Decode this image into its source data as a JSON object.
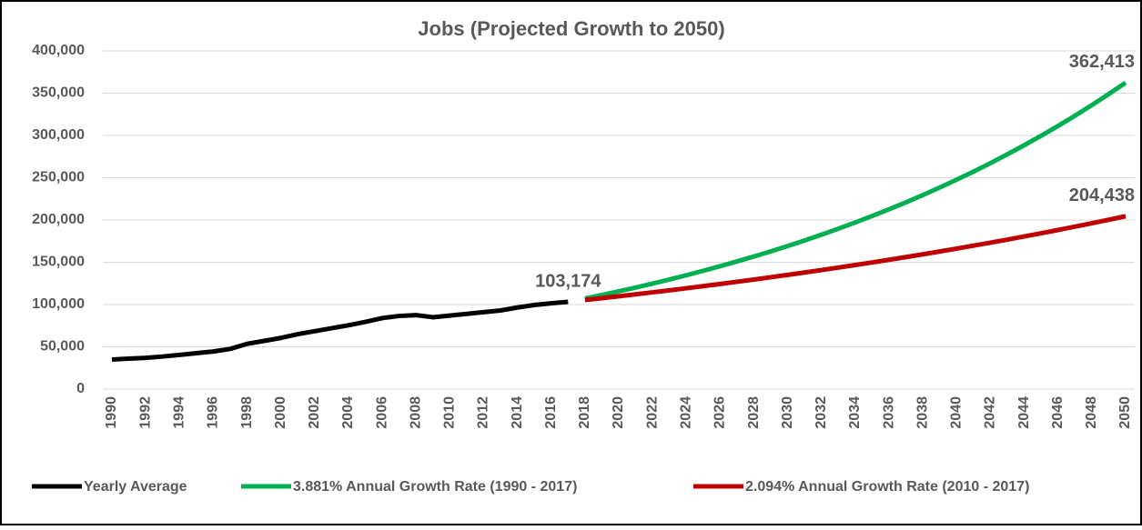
{
  "chart_data": {
    "type": "line",
    "title": "Jobs (Projected Growth to 2050)",
    "categories": [
      "1990",
      null,
      "1992",
      null,
      "1994",
      null,
      "1996",
      null,
      "1998",
      null,
      "2000",
      null,
      "2002",
      null,
      "2004",
      null,
      "2006",
      null,
      "2008",
      null,
      "2010",
      null,
      "2012",
      null,
      "2014",
      null,
      "2016",
      null,
      "2018",
      null,
      "2020",
      null,
      "2022",
      null,
      "2024",
      null,
      "2026",
      null,
      "2028",
      null,
      "2030",
      null,
      "2032",
      null,
      "2034",
      null,
      "2036",
      null,
      "2038",
      null,
      "2040",
      null,
      "2042",
      null,
      "2044",
      null,
      "2046",
      null,
      "2048",
      null,
      "2050"
    ],
    "series": [
      {
        "name": "Yearly Average",
        "color": "#000000",
        "values": [
          35000,
          36000,
          37000,
          38500,
          40500,
          42500,
          44500,
          47500,
          53500,
          57000,
          60500,
          65000,
          68500,
          72000,
          75500,
          79500,
          84000,
          86500,
          87500,
          85000,
          87000,
          89000,
          91000,
          93000,
          96500,
          99500,
          101500,
          103174,
          null,
          null,
          null,
          null,
          null,
          null,
          null,
          null,
          null,
          null,
          null,
          null,
          null,
          null,
          null,
          null,
          null,
          null,
          null,
          null,
          null,
          null,
          null,
          null,
          null,
          null,
          null,
          null,
          null,
          null,
          null,
          null,
          null
        ],
        "value_labels": [
          null,
          null,
          null,
          null,
          null,
          null,
          null,
          null,
          null,
          null,
          null,
          null,
          null,
          null,
          null,
          null,
          null,
          null,
          null,
          null,
          null,
          null,
          null,
          null,
          null,
          null,
          null,
          "103,174",
          null,
          null,
          null,
          null,
          null,
          null,
          null,
          null,
          null,
          null,
          null,
          null,
          null,
          null,
          null,
          null,
          null,
          null,
          null,
          null,
          null,
          null,
          null,
          null,
          null,
          null,
          null,
          null,
          null,
          null,
          null,
          null,
          null
        ]
      },
      {
        "name": "3.881% Annual Growth Rate (1990 - 2017)",
        "color": "#00b050",
        "values": [
          null,
          null,
          null,
          null,
          null,
          null,
          null,
          null,
          null,
          null,
          null,
          null,
          null,
          null,
          null,
          null,
          null,
          null,
          null,
          null,
          null,
          null,
          null,
          null,
          null,
          null,
          null,
          null,
          107178,
          111338,
          115659,
          120147,
          124810,
          129654,
          134686,
          139913,
          145343,
          150984,
          156844,
          162931,
          169254,
          175823,
          182647,
          189735,
          197099,
          204748,
          212694,
          220949,
          229524,
          238432,
          247686,
          257298,
          267284,
          277657,
          288433,
          299627,
          311256,
          323335,
          335884,
          348919,
          362413
        ],
        "value_labels": [
          null,
          null,
          null,
          null,
          null,
          null,
          null,
          null,
          null,
          null,
          null,
          null,
          null,
          null,
          null,
          null,
          null,
          null,
          null,
          null,
          null,
          null,
          null,
          null,
          null,
          null,
          null,
          null,
          null,
          null,
          null,
          null,
          null,
          null,
          null,
          null,
          null,
          null,
          null,
          null,
          null,
          null,
          null,
          null,
          null,
          null,
          null,
          null,
          null,
          null,
          null,
          null,
          null,
          null,
          null,
          null,
          null,
          null,
          null,
          null,
          "362,413"
        ]
      },
      {
        "name": "2.094% Annual Growth Rate (2010 - 2017)",
        "color": "#c00000",
        "values": [
          null,
          null,
          null,
          null,
          null,
          null,
          null,
          null,
          null,
          null,
          null,
          null,
          null,
          null,
          null,
          null,
          null,
          null,
          null,
          null,
          null,
          null,
          null,
          null,
          null,
          null,
          null,
          null,
          105334,
          107540,
          109792,
          112091,
          114438,
          116835,
          119281,
          121779,
          124329,
          126933,
          129591,
          132304,
          135075,
          137903,
          140791,
          143739,
          146749,
          149822,
          152959,
          156162,
          159432,
          162771,
          166179,
          169659,
          173212,
          176839,
          180542,
          184322,
          188182,
          192122,
          196145,
          200253,
          204438
        ],
        "value_labels": [
          null,
          null,
          null,
          null,
          null,
          null,
          null,
          null,
          null,
          null,
          null,
          null,
          null,
          null,
          null,
          null,
          null,
          null,
          null,
          null,
          null,
          null,
          null,
          null,
          null,
          null,
          null,
          null,
          null,
          null,
          null,
          null,
          null,
          null,
          null,
          null,
          null,
          null,
          null,
          null,
          null,
          null,
          null,
          null,
          null,
          null,
          null,
          null,
          null,
          null,
          null,
          null,
          null,
          null,
          null,
          null,
          null,
          null,
          null,
          null,
          "204,438"
        ]
      }
    ],
    "ylim": [
      0,
      400000
    ],
    "yticks": [
      0,
      {
        "value": 50000,
        "label": "50,000"
      },
      {
        "value": 100000,
        "label": "100,000"
      },
      {
        "value": 150000,
        "label": "150,000"
      },
      {
        "value": 200000,
        "label": "200,000"
      },
      {
        "value": 250000,
        "label": "250,000"
      },
      {
        "value": 300000,
        "label": "300,000"
      },
      {
        "value": 350000,
        "label": "350,000"
      },
      {
        "value": 400000,
        "label": "400,000"
      }
    ],
    "grid": true,
    "legend": "bottom"
  }
}
